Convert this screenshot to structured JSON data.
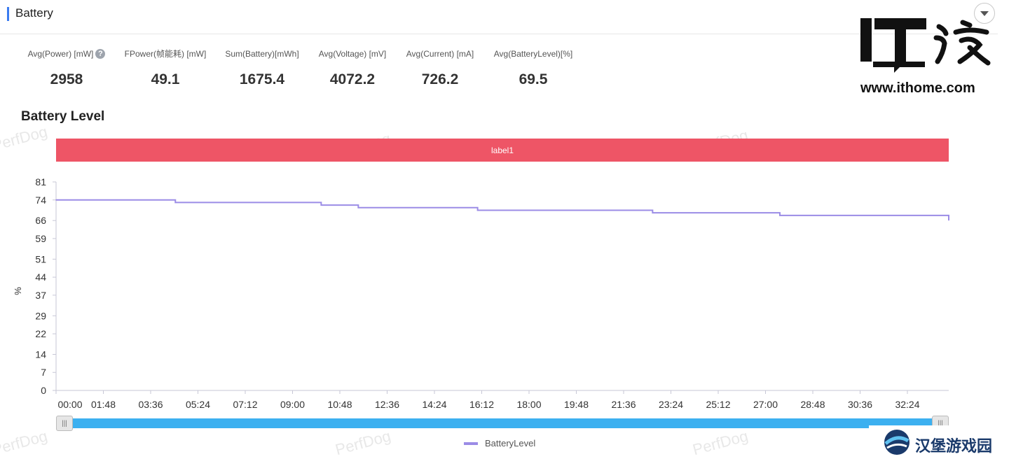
{
  "section": {
    "title": "Battery"
  },
  "stats": [
    {
      "label": "Avg(Power) [mW]",
      "value": "2958",
      "help": true
    },
    {
      "label": "FPower(帧能耗) [mW]",
      "value": "49.1"
    },
    {
      "label": "Sum(Battery)[mWh]",
      "value": "1675.4"
    },
    {
      "label": "Avg(Voltage) [mV]",
      "value": "4072.2"
    },
    {
      "label": "Avg(Current) [mA]",
      "value": "726.2"
    },
    {
      "label": "Avg(BatteryLevel)[%]",
      "value": "69.5"
    }
  ],
  "watermark": "PerfDog",
  "logo": {
    "mark": "IT之家",
    "url": "www.ithome.com"
  },
  "brand2": {
    "text": "汉堡游戏园"
  },
  "colors": {
    "accent": "#3a7bf0",
    "label_band": "#ee5566",
    "series": "#9b8ce6",
    "slider": "#3cb0f0"
  },
  "chart_data": {
    "type": "line",
    "title": "Battery Level",
    "xlabel": "",
    "ylabel": "%",
    "label_band": "label1",
    "x_ticks": [
      "00:00",
      "01:48",
      "03:36",
      "05:24",
      "07:12",
      "09:00",
      "10:48",
      "12:36",
      "14:24",
      "16:12",
      "18:00",
      "19:48",
      "21:36",
      "23:24",
      "25:12",
      "27:00",
      "28:48",
      "30:36",
      "32:24"
    ],
    "x_range_min": [
      0,
      33.67
    ],
    "y_ticks": [
      0,
      7,
      14,
      22,
      29,
      37,
      44,
      51,
      59,
      66,
      74,
      81
    ],
    "ylim": [
      0,
      81
    ],
    "legend": "bottom-center",
    "series": [
      {
        "name": "BatteryLevel",
        "step_points_min": [
          [
            0,
            74
          ],
          [
            4.5,
            73
          ],
          [
            10,
            72
          ],
          [
            11.4,
            71
          ],
          [
            15.9,
            70
          ],
          [
            22.5,
            69
          ],
          [
            27.3,
            68
          ],
          [
            34.0,
            67
          ],
          [
            40.8,
            66
          ]
        ]
      }
    ]
  }
}
